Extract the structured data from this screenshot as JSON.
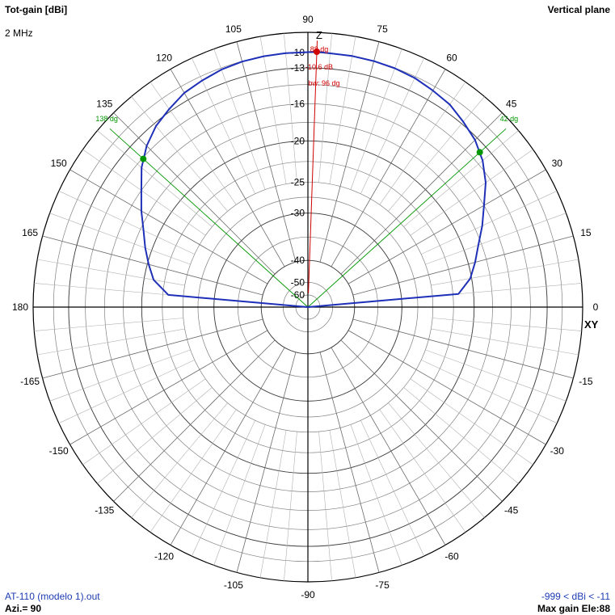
{
  "header": {
    "title": "Tot-gain [dBi]",
    "frequency": "2 MHz",
    "plane": "Vertical plane"
  },
  "footer": {
    "file": "AT-110 (modelo 1).out",
    "azimuth": "Azi.= 90",
    "range": "-999 < dBi < -11",
    "max_gain": "Max gain Ele:88"
  },
  "colors": {
    "pattern": "#1e2fb8",
    "beamwidth": "#009600",
    "maxgain": "#d00000",
    "grid": "#808080",
    "axes": "#000000"
  },
  "chart_data": {
    "type": "polar",
    "title": "Tot-gain [dBi]",
    "subtitle": "Vertical plane",
    "angle_labels": [
      "0",
      "15",
      "30",
      "45",
      "60",
      "75",
      "90",
      "105",
      "120",
      "135",
      "150",
      "165",
      "180",
      "-165",
      "-150",
      "-135",
      "-120",
      "-105",
      "-90",
      "-75",
      "-60",
      "-45",
      "-30",
      "-15"
    ],
    "axis_labels": {
      "vertical": "Z",
      "horizontal": "XY"
    },
    "ring_labels": [
      {
        "label": "-10",
        "level": 0.926
      },
      {
        "label": "-13",
        "level": 0.871
      },
      {
        "label": "-16",
        "level": 0.74
      },
      {
        "label": "-20",
        "level": 0.605
      },
      {
        "label": "-25",
        "level": 0.455
      },
      {
        "label": "-30",
        "level": 0.342
      },
      {
        "label": "-40",
        "level": 0.17
      },
      {
        "label": "-50",
        "level": 0.09
      },
      {
        "label": "-60",
        "level": 0.044
      }
    ],
    "series": [
      {
        "name": "",
        "points": [
          {
            "elevation": 0,
            "level": 0.0
          },
          {
            "elevation": 5,
            "level": 0.55
          },
          {
            "elevation": 10,
            "level": 0.6
          },
          {
            "elevation": 15,
            "level": 0.63
          },
          {
            "elevation": 20,
            "level": 0.66
          },
          {
            "elevation": 25,
            "level": 0.7
          },
          {
            "elevation": 30,
            "level": 0.74
          },
          {
            "elevation": 35,
            "level": 0.79
          },
          {
            "elevation": 40,
            "level": 0.83
          },
          {
            "elevation": 45,
            "level": 0.86
          },
          {
            "elevation": 50,
            "level": 0.88
          },
          {
            "elevation": 55,
            "level": 0.9
          },
          {
            "elevation": 60,
            "level": 0.91
          },
          {
            "elevation": 65,
            "level": 0.92
          },
          {
            "elevation": 70,
            "level": 0.925
          },
          {
            "elevation": 75,
            "level": 0.927
          },
          {
            "elevation": 80,
            "level": 0.928
          },
          {
            "elevation": 88,
            "level": 0.93
          },
          {
            "elevation": 95,
            "level": 0.928
          },
          {
            "elevation": 100,
            "level": 0.927
          },
          {
            "elevation": 105,
            "level": 0.925
          },
          {
            "elevation": 110,
            "level": 0.92
          },
          {
            "elevation": 115,
            "level": 0.91
          },
          {
            "elevation": 120,
            "level": 0.9
          },
          {
            "elevation": 125,
            "level": 0.88
          },
          {
            "elevation": 130,
            "level": 0.86
          },
          {
            "elevation": 135,
            "level": 0.83
          },
          {
            "elevation": 140,
            "level": 0.79
          },
          {
            "elevation": 145,
            "level": 0.74
          },
          {
            "elevation": 150,
            "level": 0.7
          },
          {
            "elevation": 155,
            "level": 0.66
          },
          {
            "elevation": 160,
            "level": 0.63
          },
          {
            "elevation": 165,
            "level": 0.6
          },
          {
            "elevation": 170,
            "level": 0.57
          },
          {
            "elevation": 175,
            "level": 0.51
          },
          {
            "elevation": 180,
            "level": 0.0
          }
        ]
      }
    ],
    "max_gain": {
      "elevation": 88,
      "gain_dbi": -10.6,
      "label_angle": "88 dg",
      "label_gain": "-10.6 dB"
    },
    "beamwidth": {
      "label": "bw: 96 dg",
      "edges": [
        {
          "elevation": 42,
          "label": "42 dg"
        },
        {
          "elevation": 138,
          "label": "138 dg"
        }
      ]
    }
  }
}
